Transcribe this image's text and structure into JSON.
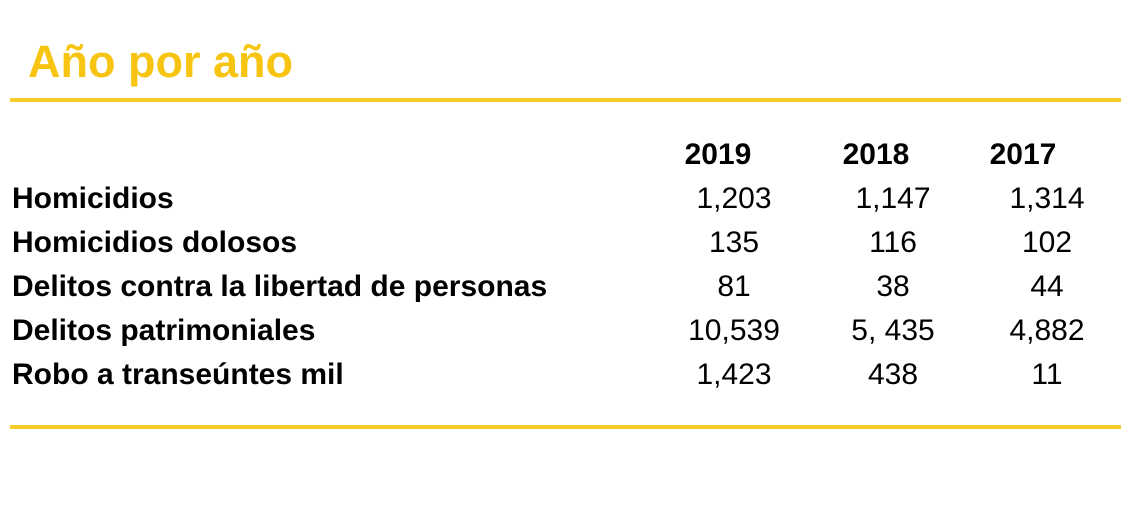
{
  "header": {
    "title": "Año por año"
  },
  "table": {
    "columns": [
      "2019",
      "2018",
      "2017"
    ],
    "rows": [
      [
        "Homicidios",
        "1,203",
        "1,147",
        "1,314"
      ],
      [
        "Homicidios dolosos",
        "135",
        "116",
        "102"
      ],
      [
        "Delitos contra la libertad de personas",
        "81",
        "38",
        "44"
      ],
      [
        "Delitos patrimoniales",
        "10,539",
        "5, 435",
        "4,882"
      ],
      [
        "Robo a transeúntes mil",
        "1,423",
        "438",
        "11"
      ]
    ]
  }
}
